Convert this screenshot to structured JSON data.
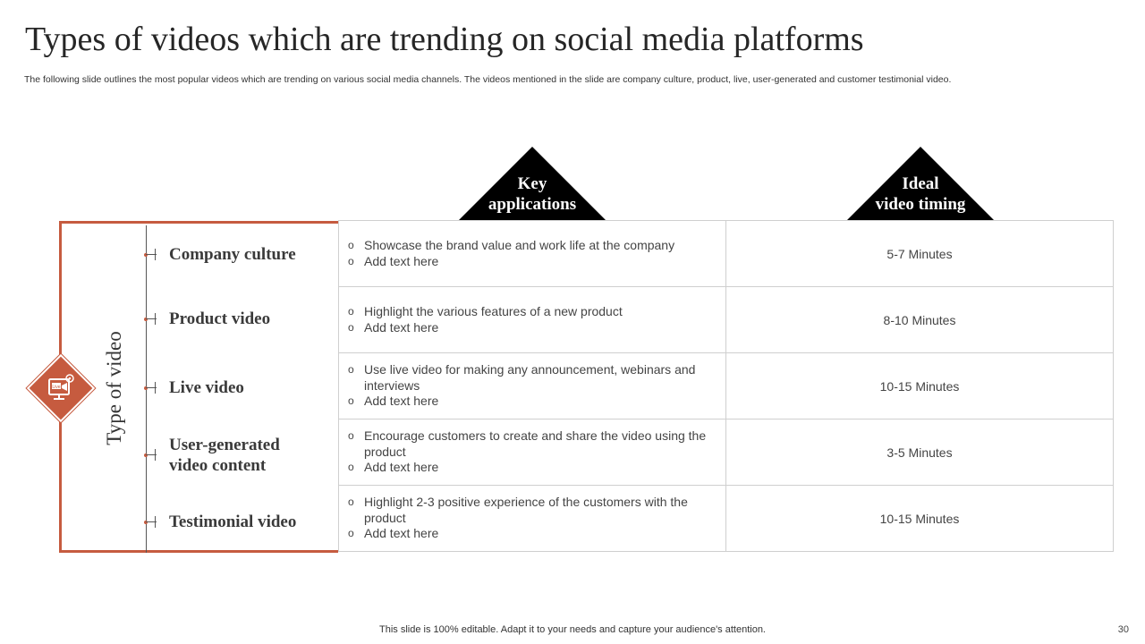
{
  "slide": {
    "title": "Types of videos which are trending on social media platforms",
    "subtitle": "The following slide outlines the most popular videos which are trending on various social media channels. The videos mentioned in the slide are company culture, product, live, user-generated and customer testimonial video.",
    "footer": "This slide is 100% editable. Adapt it to your needs and capture your audience's attention.",
    "page_number": "30"
  },
  "headers": {
    "key_applications_line1": "Key",
    "key_applications_line2": "applications",
    "ideal_timing_line1": "Ideal",
    "ideal_timing_line2": "video timing"
  },
  "side_label": "Type of video",
  "icon": {
    "name": "live-video-icon",
    "text": "Live",
    "accent": "#c65b3f"
  },
  "rows": [
    {
      "type_line1": "Company culture",
      "type_line2": "",
      "apps": [
        "Showcase the brand value and work life at the company",
        "Add text here"
      ],
      "timing": "5-7 Minutes"
    },
    {
      "type_line1": "Product video",
      "type_line2": "",
      "apps": [
        "Highlight the various features of a new product",
        "Add text here"
      ],
      "timing": "8-10 Minutes"
    },
    {
      "type_line1": "Live video",
      "type_line2": "",
      "apps": [
        "Use live video for making any announcement, webinars and interviews",
        "Add text here"
      ],
      "timing": "10-15 Minutes"
    },
    {
      "type_line1": "User-generated",
      "type_line2": "video content",
      "apps": [
        "Encourage customers to create and share the video using the product",
        "Add text here"
      ],
      "timing": "3-5 Minutes"
    },
    {
      "type_line1": "Testimonial video",
      "type_line2": "",
      "apps": [
        "Highlight 2-3 positive experience of the customers with the product",
        "Add text here"
      ],
      "timing": "10-15 Minutes"
    }
  ]
}
